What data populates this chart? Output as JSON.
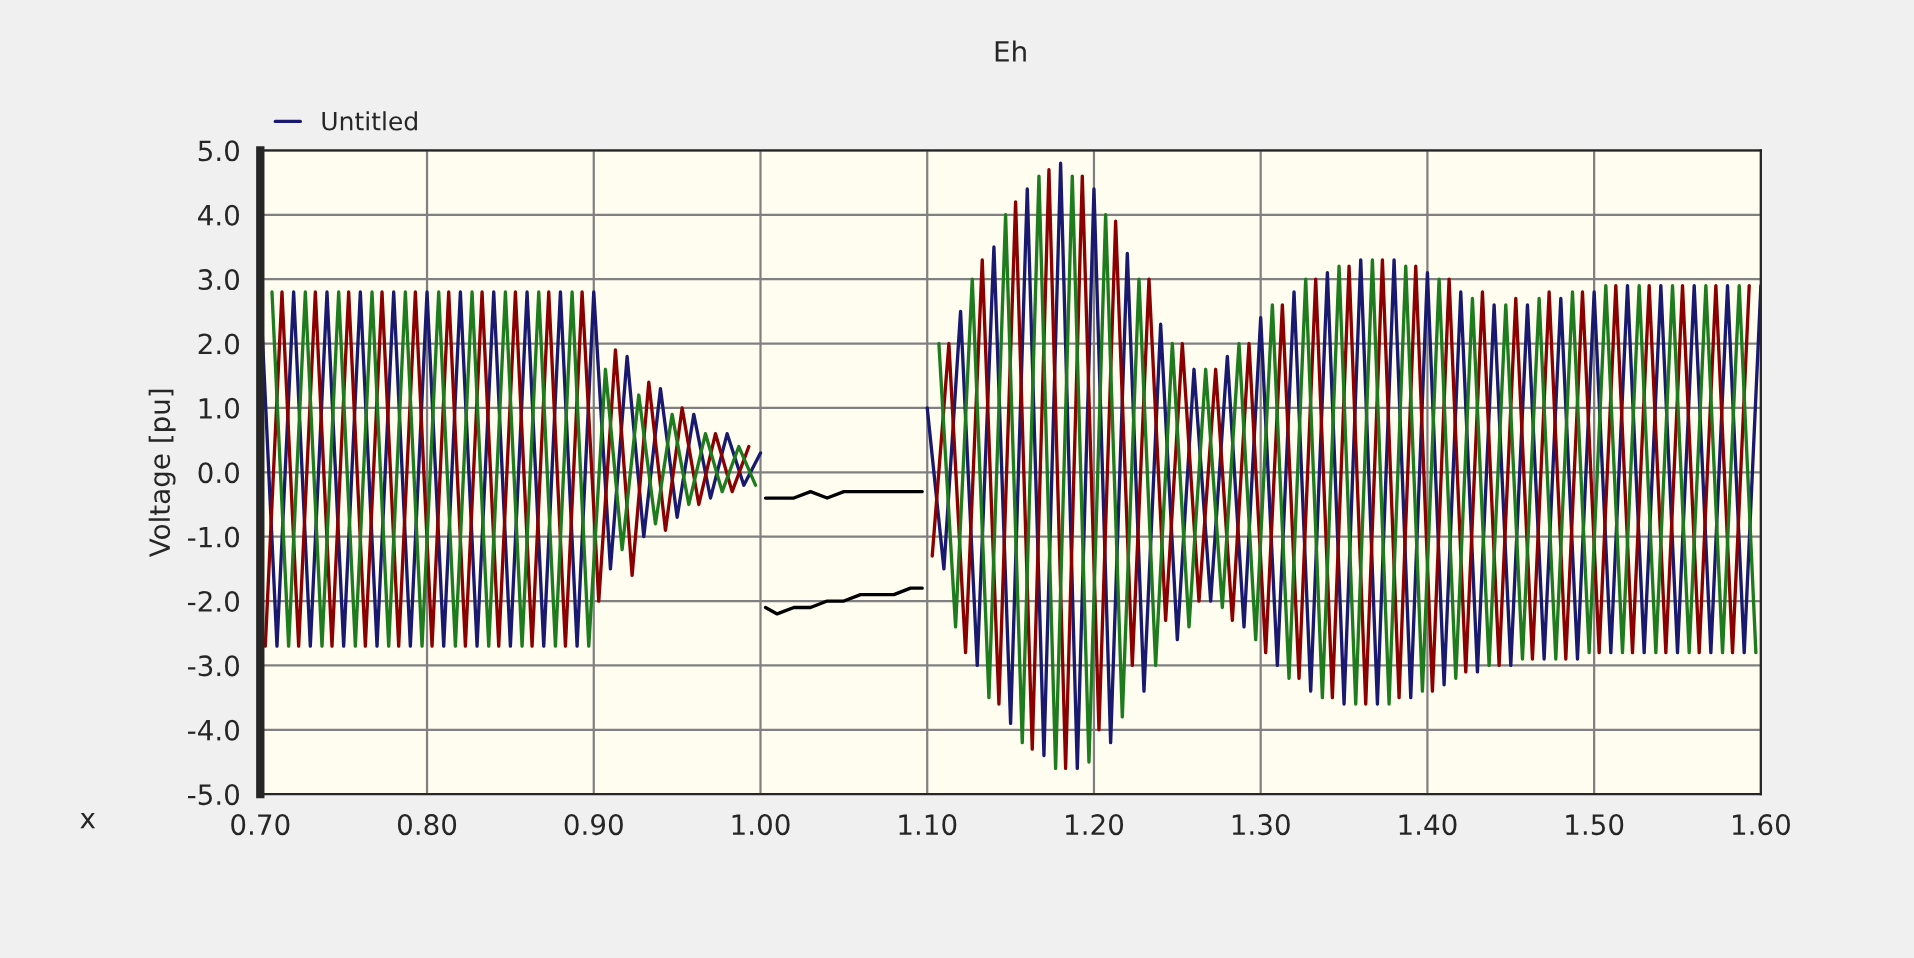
{
  "chart_data": {
    "type": "line",
    "title": "Eh",
    "xlabel": "x",
    "ylabel": "Voltage [pu]",
    "xlim": [
      0.7,
      1.6
    ],
    "ylim": [
      -5.0,
      5.0
    ],
    "xticks": [
      {
        "value": 0.7,
        "label": "0.70"
      },
      {
        "value": 0.8,
        "label": "0.80"
      },
      {
        "value": 0.9,
        "label": "0.90"
      },
      {
        "value": 1.0,
        "label": "1.00"
      },
      {
        "value": 1.1,
        "label": "1.10"
      },
      {
        "value": 1.2,
        "label": "1.20"
      },
      {
        "value": 1.3,
        "label": "1.30"
      },
      {
        "value": 1.4,
        "label": "1.40"
      },
      {
        "value": 1.5,
        "label": "1.50"
      },
      {
        "value": 1.6,
        "label": "1.60"
      }
    ],
    "yticks": [
      {
        "value": 5.0,
        "label": "5.0"
      },
      {
        "value": 4.0,
        "label": "4.0"
      },
      {
        "value": 3.0,
        "label": "3.0"
      },
      {
        "value": 2.0,
        "label": "2.0"
      },
      {
        "value": 1.0,
        "label": "1.0"
      },
      {
        "value": 0.0,
        "label": "0.0"
      },
      {
        "value": -1.0,
        "label": "-1.0"
      },
      {
        "value": -2.0,
        "label": "-2.0"
      },
      {
        "value": -3.0,
        "label": "-3.0"
      },
      {
        "value": -4.0,
        "label": "-4.0"
      },
      {
        "value": -5.0,
        "label": "-5.0"
      }
    ],
    "grid": true,
    "legend": "top left",
    "marker": "none",
    "line_style": "solid",
    "series": [
      {
        "name": "Untitled",
        "color": "#191970",
        "x": [
          0.7,
          0.71,
          0.72,
          0.73,
          0.74,
          0.75,
          0.76,
          0.77,
          0.78,
          0.79,
          0.8,
          0.81,
          0.82,
          0.83,
          0.84,
          0.85,
          0.86,
          0.87,
          0.88,
          0.89,
          0.9,
          0.91,
          0.92,
          0.93,
          0.94,
          0.95,
          0.96,
          0.97,
          0.98,
          0.99,
          1.0,
          1.05,
          1.1,
          1.11,
          1.12,
          1.13,
          1.14,
          1.15,
          1.16,
          1.17,
          1.18,
          1.19,
          1.2,
          1.21,
          1.22,
          1.23,
          1.24,
          1.25,
          1.26,
          1.27,
          1.28,
          1.29,
          1.3,
          1.31,
          1.32,
          1.33,
          1.34,
          1.35,
          1.36,
          1.37,
          1.38,
          1.39,
          1.4,
          1.41,
          1.42,
          1.43,
          1.44,
          1.45,
          1.46,
          1.47,
          1.48,
          1.49,
          1.5,
          1.51,
          1.52,
          1.53,
          1.54,
          1.55,
          1.56,
          1.57,
          1.58,
          1.59,
          1.6
        ],
        "values": [
          2.8,
          -2.7,
          2.8,
          -2.7,
          2.8,
          -2.7,
          2.8,
          -2.7,
          2.8,
          -2.7,
          2.8,
          -2.7,
          2.8,
          -2.7,
          2.8,
          -2.7,
          2.8,
          -2.7,
          2.8,
          -2.7,
          2.8,
          -1.5,
          1.8,
          -1.0,
          1.3,
          -0.7,
          0.9,
          -0.4,
          0.6,
          -0.2,
          0.3,
          null,
          1.0,
          -1.5,
          2.5,
          -3.0,
          3.5,
          -3.9,
          4.4,
          -4.4,
          4.8,
          -4.6,
          4.4,
          -4.2,
          3.4,
          -3.4,
          2.3,
          -2.6,
          1.6,
          -2.0,
          1.8,
          -2.4,
          2.4,
          -3.0,
          2.8,
          -3.4,
          3.1,
          -3.6,
          3.3,
          -3.6,
          3.3,
          -3.5,
          3.1,
          -3.3,
          2.8,
          -3.1,
          2.6,
          -3.0,
          2.6,
          -2.9,
          2.7,
          -2.9,
          2.8,
          -2.8,
          2.9,
          -2.8,
          2.9,
          -2.8,
          2.9,
          -2.8,
          2.9,
          -2.8,
          2.9
        ]
      },
      {
        "color": "#8b0000",
        "x": [
          0.703,
          0.713,
          0.723,
          0.733,
          0.743,
          0.753,
          0.763,
          0.773,
          0.783,
          0.793,
          0.803,
          0.813,
          0.823,
          0.833,
          0.843,
          0.853,
          0.863,
          0.873,
          0.883,
          0.893,
          0.903,
          0.913,
          0.923,
          0.933,
          0.943,
          0.953,
          0.963,
          0.973,
          0.983,
          0.993,
          1.05,
          1.103,
          1.113,
          1.123,
          1.133,
          1.143,
          1.153,
          1.163,
          1.173,
          1.183,
          1.193,
          1.203,
          1.213,
          1.223,
          1.233,
          1.243,
          1.253,
          1.263,
          1.273,
          1.283,
          1.293,
          1.303,
          1.313,
          1.323,
          1.333,
          1.343,
          1.353,
          1.363,
          1.373,
          1.383,
          1.393,
          1.403,
          1.413,
          1.423,
          1.433,
          1.443,
          1.453,
          1.463,
          1.473,
          1.483,
          1.493,
          1.503,
          1.513,
          1.523,
          1.533,
          1.543,
          1.553,
          1.563,
          1.573,
          1.583,
          1.593
        ],
        "values": [
          -2.7,
          2.8,
          -2.7,
          2.8,
          -2.7,
          2.8,
          -2.7,
          2.8,
          -2.7,
          2.8,
          -2.7,
          2.8,
          -2.7,
          2.8,
          -2.7,
          2.8,
          -2.7,
          2.8,
          -2.7,
          2.8,
          -2.0,
          1.9,
          -1.6,
          1.4,
          -0.9,
          1.0,
          -0.5,
          0.6,
          -0.3,
          0.4,
          null,
          -1.3,
          2.0,
          -2.8,
          3.3,
          -3.6,
          4.2,
          -4.3,
          4.7,
          -4.6,
          4.6,
          -4.0,
          3.9,
          -3.0,
          3.0,
          -2.3,
          2.0,
          -2.0,
          1.6,
          -2.3,
          2.0,
          -2.8,
          2.6,
          -3.2,
          3.0,
          -3.5,
          3.2,
          -3.6,
          3.3,
          -3.5,
          3.2,
          -3.4,
          3.0,
          -3.1,
          2.8,
          -3.0,
          2.7,
          -2.9,
          2.8,
          -2.9,
          2.8,
          -2.8,
          2.9,
          -2.8,
          2.9,
          -2.8,
          2.9,
          -2.8,
          2.9,
          -2.8,
          2.9
        ]
      },
      {
        "color": "#1e7b1e",
        "x": [
          0.707,
          0.717,
          0.727,
          0.737,
          0.747,
          0.757,
          0.767,
          0.777,
          0.787,
          0.797,
          0.807,
          0.817,
          0.827,
          0.837,
          0.847,
          0.857,
          0.867,
          0.877,
          0.887,
          0.897,
          0.907,
          0.917,
          0.927,
          0.937,
          0.947,
          0.957,
          0.967,
          0.977,
          0.987,
          0.997,
          1.05,
          1.107,
          1.117,
          1.127,
          1.137,
          1.147,
          1.157,
          1.167,
          1.177,
          1.187,
          1.197,
          1.207,
          1.217,
          1.227,
          1.237,
          1.247,
          1.257,
          1.267,
          1.277,
          1.287,
          1.297,
          1.307,
          1.317,
          1.327,
          1.337,
          1.347,
          1.357,
          1.367,
          1.377,
          1.387,
          1.397,
          1.407,
          1.417,
          1.427,
          1.437,
          1.447,
          1.457,
          1.467,
          1.477,
          1.487,
          1.497,
          1.507,
          1.517,
          1.527,
          1.537,
          1.547,
          1.557,
          1.567,
          1.577,
          1.587,
          1.597
        ],
        "values": [
          2.8,
          -2.7,
          2.8,
          -2.7,
          2.8,
          -2.7,
          2.8,
          -2.7,
          2.8,
          -2.7,
          2.8,
          -2.7,
          2.8,
          -2.7,
          2.8,
          -2.7,
          2.8,
          -2.7,
          2.8,
          -2.7,
          1.6,
          -1.2,
          1.2,
          -0.8,
          0.9,
          -0.5,
          0.6,
          -0.3,
          0.4,
          -0.2,
          null,
          2.0,
          -2.4,
          3.0,
          -3.5,
          4.0,
          -4.2,
          4.6,
          -4.6,
          4.6,
          -4.5,
          4.0,
          -3.8,
          3.0,
          -3.0,
          2.0,
          -2.4,
          1.6,
          -2.1,
          2.0,
          -2.6,
          2.6,
          -3.2,
          3.0,
          -3.5,
          3.2,
          -3.6,
          3.3,
          -3.6,
          3.2,
          -3.4,
          3.0,
          -3.2,
          2.7,
          -3.0,
          2.6,
          -2.9,
          2.7,
          -2.9,
          2.8,
          -2.8,
          2.9,
          -2.8,
          2.9,
          -2.8,
          2.9,
          -2.8,
          2.9,
          -2.8,
          2.9,
          -2.8
        ]
      },
      {
        "color": "#000000",
        "x": [
          1.003,
          1.01,
          1.02,
          1.03,
          1.04,
          1.05,
          1.06,
          1.07,
          1.08,
          1.09,
          1.097
        ],
        "values": [
          -0.4,
          -0.4,
          -0.4,
          -0.3,
          -0.4,
          -0.3,
          -0.3,
          -0.3,
          -0.3,
          -0.3,
          -0.3
        ]
      },
      {
        "color": "#000000",
        "x": [
          1.003,
          1.01,
          1.02,
          1.03,
          1.04,
          1.05,
          1.06,
          1.07,
          1.08,
          1.09,
          1.097
        ],
        "values": [
          -2.1,
          -2.2,
          -2.1,
          -2.1,
          -2.0,
          -2.0,
          -1.9,
          -1.9,
          -1.9,
          -1.8,
          -1.8
        ]
      }
    ]
  }
}
